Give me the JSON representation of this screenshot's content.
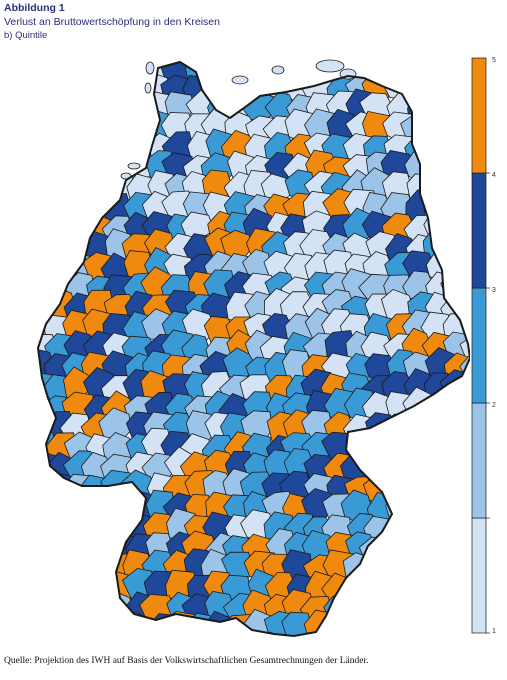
{
  "figure": {
    "label": "Abbildung 1",
    "title": "Verlust an Bruttowertschöpfung in den Kreisen",
    "subtitle": "b)  Quintile"
  },
  "legend": {
    "ticks": [
      "1",
      "2",
      "3",
      "4",
      "5"
    ],
    "colors": [
      "#d3e3f5",
      "#9cc3e8",
      "#3a9ad6",
      "#1f479a",
      "#f08a0f"
    ]
  },
  "map": {
    "border_color": "#1a1a1a",
    "background": "#ffffff"
  },
  "source": "Quelle: Projektion des IWH auf Basis der Volkswirtschaftlichen Gesamtrechnungen der Länder."
}
